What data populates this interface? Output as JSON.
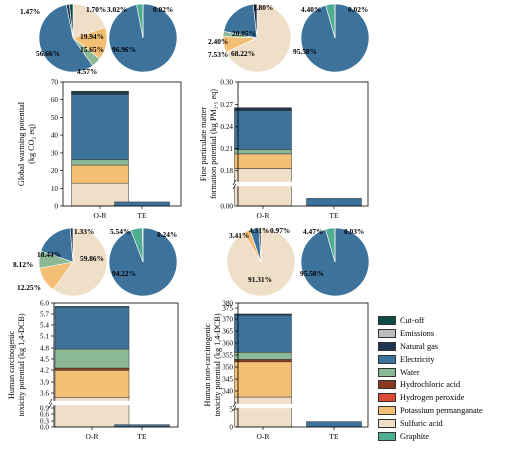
{
  "colors": {
    "Cut-off": "#0d4a45",
    "Emissions": "#bebebe",
    "Natural gas": "#1e344f",
    "Electricity": "#3d729b",
    "Water": "#8cb995",
    "Hydrochloric acid": "#8a3a1e",
    "Hydrogen peroxide": "#dd4a34",
    "Potassium permanganate": "#f3bf74",
    "Sulfuric acid": "#efdfc8",
    "Graphite": "#4fae91"
  },
  "legend": [
    "Cut-off",
    "Emissions",
    "Natural gas",
    "Electricity",
    "Water",
    "Hydrochloric acid",
    "Hydrogen peroxide",
    "Potassium permanganate",
    "Sulfuric acid",
    "Graphite"
  ],
  "chart_data": [
    {
      "type": "bar",
      "ylabel": "Global warming potential (kg CO₂ eq)",
      "categories": [
        "O-R",
        "TE"
      ],
      "ylim": [
        0,
        70
      ],
      "yticks": [
        "0",
        "10",
        "20",
        "30",
        "40",
        "50",
        "60",
        "70"
      ],
      "broken_axis": false,
      "series": [
        {
          "name": "Sulfuric acid",
          "values": [
            12.9,
            0
          ]
        },
        {
          "name": "Potassium permanganate",
          "values": [
            10.2,
            0
          ]
        },
        {
          "name": "Water",
          "values": [
            3.0,
            0
          ]
        },
        {
          "name": "Electricity",
          "values": [
            36.9,
            2.3
          ]
        },
        {
          "name": "Natural gas",
          "values": [
            1.0,
            0
          ]
        },
        {
          "name": "Cut-off",
          "values": [
            0.8,
            0
          ]
        }
      ],
      "pies": [
        {
          "category": "O-R",
          "slices": [
            {
              "name": "Sulfuric acid",
              "value": 19.94
            },
            {
              "name": "Potassium permanganate",
              "value": 15.65
            },
            {
              "name": "Water",
              "value": 4.57
            },
            {
              "name": "Electricity",
              "value": 56.66
            },
            {
              "name": "Natural gas",
              "value": 1.47
            },
            {
              "name": "Cut-off",
              "value": 1.7
            }
          ],
          "labels": [
            "19.94%",
            "15.65%",
            "4.57%",
            "56.66%",
            "1.47%",
            "1.70%"
          ]
        },
        {
          "category": "TE",
          "slices": [
            {
              "name": "Electricity",
              "value": 96.96
            },
            {
              "name": "Graphite",
              "value": 3.02
            },
            {
              "name": "Cut-off",
              "value": 0.02
            }
          ],
          "labels": [
            "96.96%",
            "3.02%",
            "0.02%"
          ]
        }
      ]
    },
    {
      "type": "bar",
      "ylabel": "Fine particulate matter formation potential (kg PM₂.₅ eq)",
      "categories": [
        "O-R",
        "TE"
      ],
      "ylim": [
        0,
        0.3
      ],
      "yticks": [
        "0.00",
        "0.18",
        "0.21",
        "0.24",
        "0.27",
        "0.30"
      ],
      "broken_axis": true,
      "series": [
        {
          "name": "Sulfuric acid",
          "values": [
            0.182,
            0
          ]
        },
        {
          "name": "Potassium permanganate",
          "values": [
            0.02,
            0
          ]
        },
        {
          "name": "Water",
          "values": [
            0.006,
            0
          ]
        },
        {
          "name": "Electricity",
          "values": [
            0.053,
            0.004
          ]
        },
        {
          "name": "Natural gas",
          "values": [
            0.004,
            0
          ]
        }
      ],
      "pies": [
        {
          "category": "O-R",
          "slices": [
            {
              "name": "Sulfuric acid",
              "value": 68.22
            },
            {
              "name": "Potassium permanganate",
              "value": 7.53
            },
            {
              "name": "Water",
              "value": 2.4
            },
            {
              "name": "Electricity",
              "value": 20.05
            },
            {
              "name": "Natural gas",
              "value": 1.8
            }
          ],
          "labels": [
            "68.22%",
            "7.53%",
            "2.40%",
            "20.05%",
            "1.80%"
          ]
        },
        {
          "category": "TE",
          "slices": [
            {
              "name": "Electricity",
              "value": 95.58
            },
            {
              "name": "Graphite",
              "value": 4.4
            },
            {
              "name": "Cut-off",
              "value": 0.02
            }
          ],
          "labels": [
            "95.58%",
            "4.40%",
            "0.02%"
          ]
        }
      ]
    },
    {
      "type": "bar",
      "ylabel": "Human carcinogenic toxicity potential (kg 1,4-DCB)",
      "categories": [
        "O-R",
        "TE"
      ],
      "ylim": [
        0,
        6.0
      ],
      "yticks": [
        "0.0",
        "0.3",
        "0.6",
        "0.9",
        "3.6",
        "3.9",
        "4.2",
        "4.5",
        "4.8",
        "5.1",
        "5.4",
        "5.7",
        "6.0"
      ],
      "broken_axis": true,
      "series": [
        {
          "name": "Sulfuric acid",
          "values": [
            3.52,
            0
          ]
        },
        {
          "name": "Potassium permanganate",
          "values": [
            0.71,
            0
          ]
        },
        {
          "name": "Hydrochloric acid",
          "values": [
            0.06,
            0
          ]
        },
        {
          "name": "Water",
          "values": [
            0.5,
            0
          ]
        },
        {
          "name": "Electricity",
          "values": [
            1.1,
            0.1
          ]
        },
        {
          "name": "Natural gas",
          "values": [
            0.02,
            0
          ]
        }
      ],
      "pies": [
        {
          "category": "O-R",
          "slices": [
            {
              "name": "Sulfuric acid",
              "value": 59.86
            },
            {
              "name": "Potassium permanganate",
              "value": 12.25
            },
            {
              "name": "Water",
              "value": 8.12
            },
            {
              "name": "Electricity",
              "value": 18.44
            },
            {
              "name": "Natural gas",
              "value": 1.33
            }
          ],
          "labels": [
            "59.86%",
            "12.25%",
            "8.12%",
            "18.44%",
            "1.33%"
          ]
        },
        {
          "category": "TE",
          "slices": [
            {
              "name": "Electricity",
              "value": 94.22
            },
            {
              "name": "Graphite",
              "value": 5.54
            },
            {
              "name": "Cut-off",
              "value": 0.24
            }
          ],
          "labels": [
            "94.22%",
            "5.54%",
            "0.24%"
          ]
        }
      ]
    },
    {
      "type": "bar",
      "ylabel": "Human non-carcinogenic toxicity potential (kg 1,4-DCB)",
      "categories": [
        "O-R",
        "TE"
      ],
      "ylim": [
        0,
        380
      ],
      "yticks": [
        "0",
        "5",
        "340",
        "345",
        "350",
        "355",
        "360",
        "365",
        "370",
        "375",
        "380"
      ],
      "broken_axis": true,
      "series": [
        {
          "name": "Sulfuric acid",
          "values": [
            340.5,
            0
          ]
        },
        {
          "name": "Potassium permanganate",
          "values": [
            14.8,
            0
          ]
        },
        {
          "name": "Hydrochloric acid",
          "values": [
            1.0,
            0
          ]
        },
        {
          "name": "Water",
          "values": [
            3.0,
            0
          ]
        },
        {
          "name": "Electricity",
          "values": [
            15.6,
            1.5
          ]
        },
        {
          "name": "Natural gas",
          "values": [
            0.5,
            0
          ]
        }
      ],
      "pies": [
        {
          "category": "O-R",
          "slices": [
            {
              "name": "Sulfuric acid",
              "value": 91.31
            },
            {
              "name": "Potassium permanganate",
              "value": 3.41
            },
            {
              "name": "Electricity",
              "value": 4.31
            },
            {
              "name": "Natural gas",
              "value": 0.97
            }
          ],
          "labels": [
            "91.31%",
            "3.41%",
            "4.31%",
            "0.97%"
          ]
        },
        {
          "category": "TE",
          "slices": [
            {
              "name": "Electricity",
              "value": 95.5
            },
            {
              "name": "Graphite",
              "value": 4.47
            },
            {
              "name": "Cut-off",
              "value": 0.03
            }
          ],
          "labels": [
            "95.50%",
            "4.47%",
            "0.03%"
          ]
        }
      ]
    }
  ]
}
